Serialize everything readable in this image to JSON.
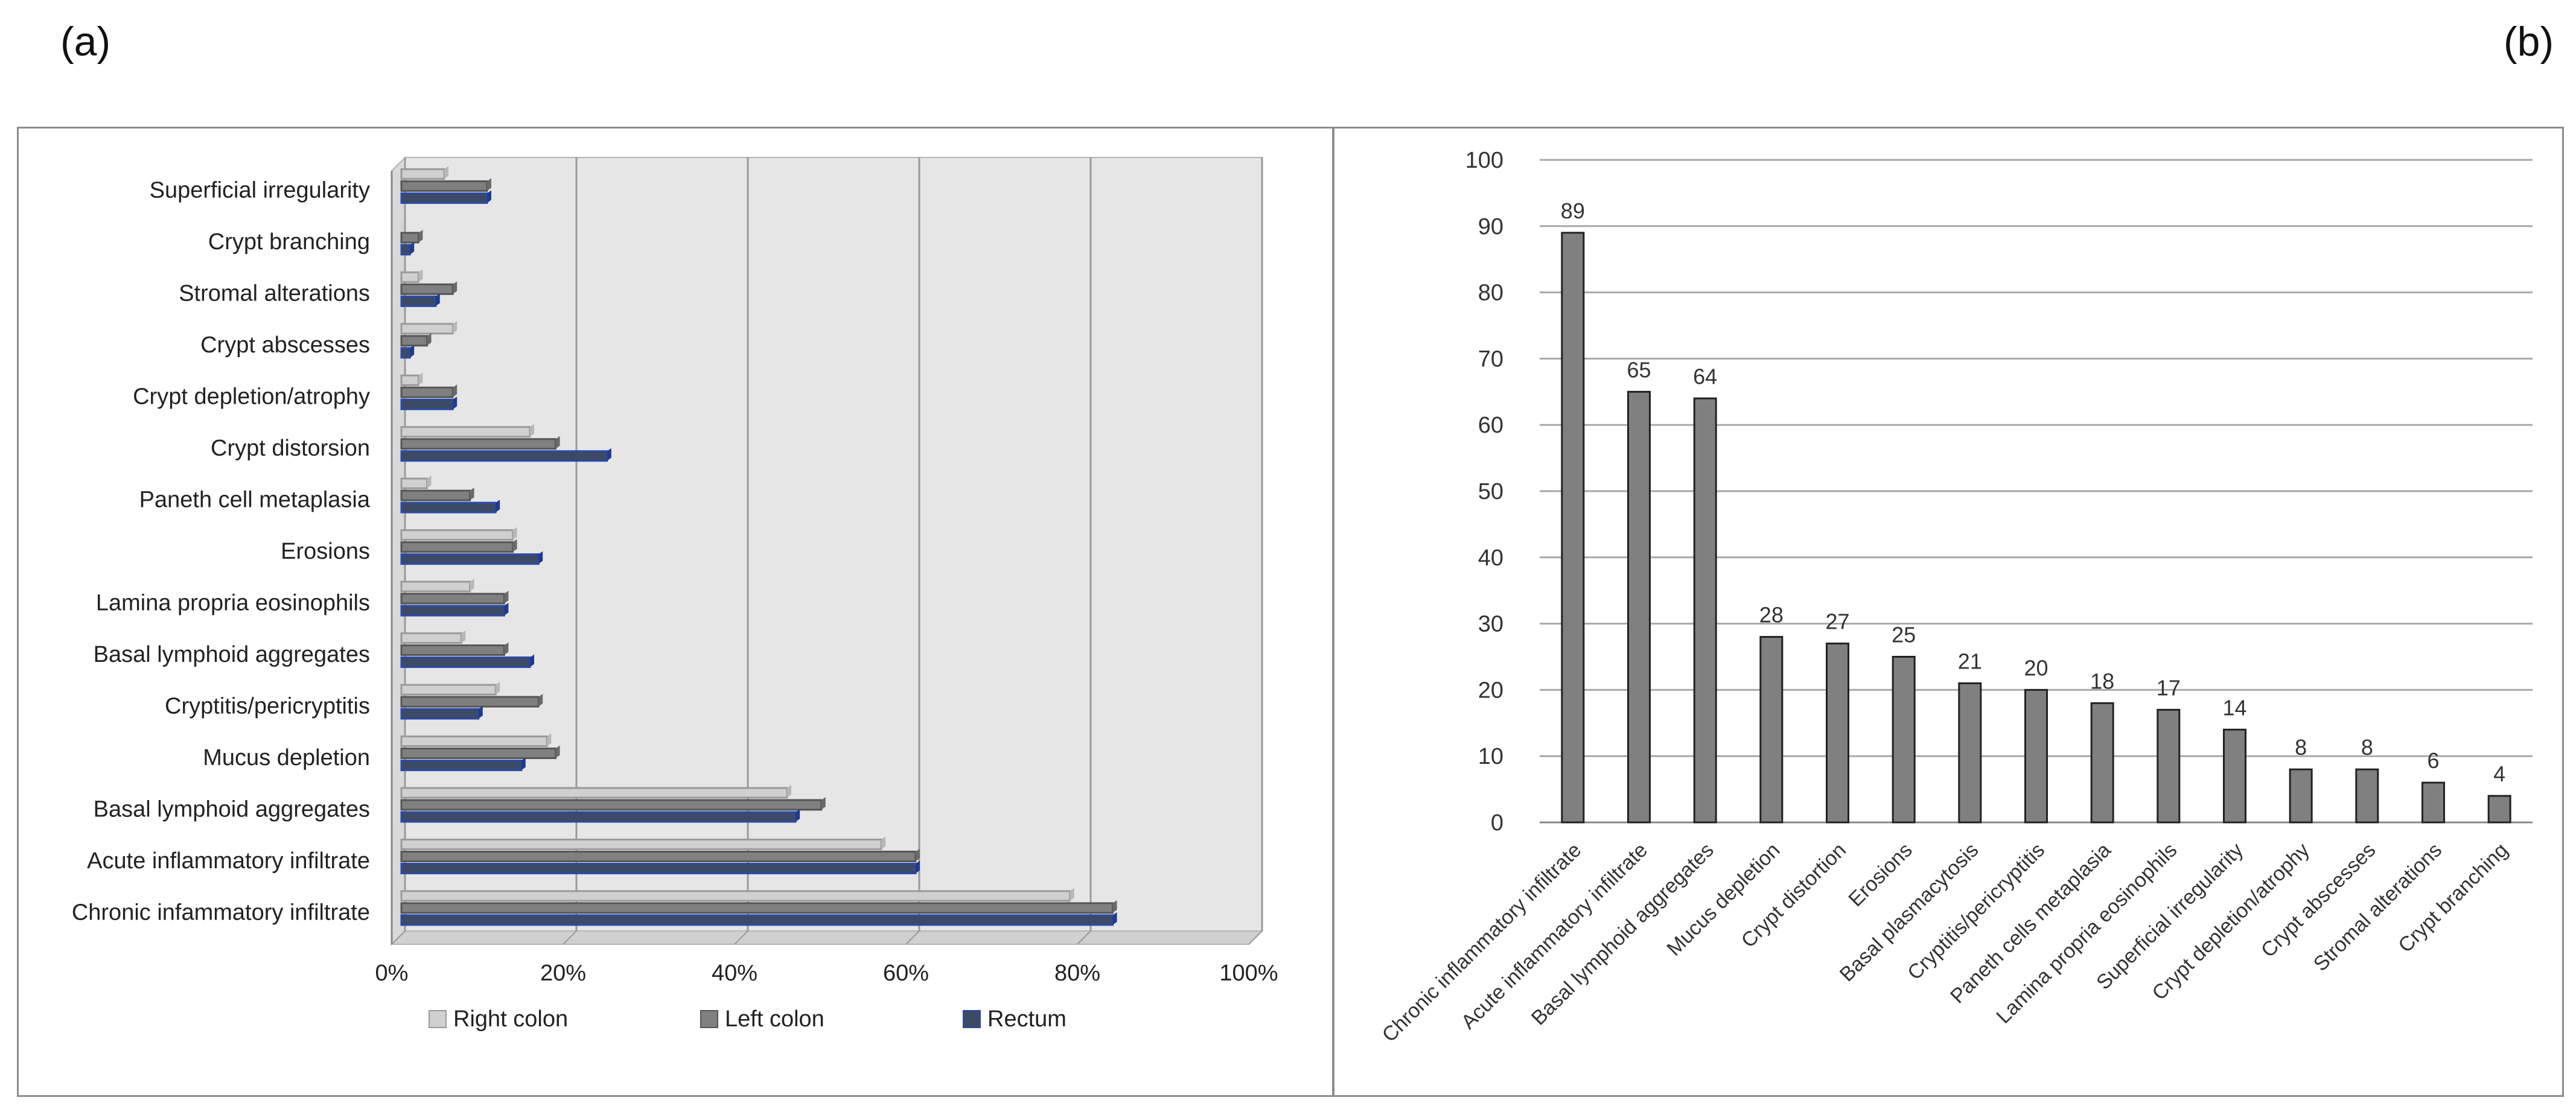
{
  "panels": {
    "a_label": "(a)",
    "b_label": "(b)"
  },
  "chart_data": [
    {
      "type": "bar",
      "orientation": "horizontal",
      "categories": [
        "Superficial irregularity",
        "Crypt branching",
        "Stromal alterations",
        "Crypt abscesses",
        "Crypt depletion/atrophy",
        "Crypt distorsion",
        "Paneth cell metaplasia",
        "Erosions",
        "Lamina propria eosinophils",
        "Basal lymphoid aggregates",
        "Cryptitis/pericryptitis",
        "Mucus depletion",
        "Basal lymphoid aggregates",
        "Acute inflammatory infiltrate",
        "Chronic infammatory infiltrate"
      ],
      "series": [
        {
          "name": "Right colon",
          "color": "#d0d0d0",
          "values": [
            5,
            0,
            2,
            6,
            2,
            15,
            3,
            13,
            8,
            7,
            11,
            17,
            45,
            56,
            78
          ]
        },
        {
          "name": "Left colon",
          "color": "#808080",
          "values": [
            10,
            2,
            6,
            3,
            6,
            18,
            8,
            13,
            12,
            12,
            16,
            18,
            49,
            60,
            83
          ]
        },
        {
          "name": "Rectum",
          "color": "#3c4a66",
          "values": [
            10,
            1,
            4,
            1,
            6,
            24,
            11,
            16,
            12,
            15,
            9,
            14,
            46,
            60,
            83
          ]
        }
      ],
      "xlim": [
        0,
        100
      ],
      "xticks": [
        "0%",
        "20%",
        "40%",
        "60%",
        "80%",
        "100%"
      ],
      "grid": true,
      "legend_position": "bottom"
    },
    {
      "type": "bar",
      "categories": [
        "Chronic inflammatory infiltrate",
        "Acute inflammatory infiltrate",
        "Basal lymphoid aggregates",
        "Mucus depletion",
        "Crypt distortion",
        "Erosions",
        "Basal plasmacytosis",
        "Cryptitis/pericryptitis",
        "Paneth cells metaplasia",
        "Lamina propria eosinophils",
        "Superficial irregularity",
        "Crypt depletion/atrophy",
        "Crypt abscesses",
        "Stromal alterations",
        "Crypt branching"
      ],
      "values": [
        89,
        65,
        64,
        28,
        27,
        25,
        21,
        20,
        18,
        17,
        14,
        8,
        8,
        6,
        4
      ],
      "data_labels": [
        "89",
        "65",
        "64",
        "28",
        "27",
        "25",
        "21",
        "20",
        "18",
        "17",
        "14",
        "8",
        "8",
        "6",
        "4"
      ],
      "ylim": [
        0,
        100
      ],
      "yticks": [
        "0",
        "10",
        "20",
        "30",
        "40",
        "50",
        "60",
        "70",
        "80",
        "90",
        "100"
      ],
      "bar_color": "#808080",
      "grid": true
    }
  ]
}
